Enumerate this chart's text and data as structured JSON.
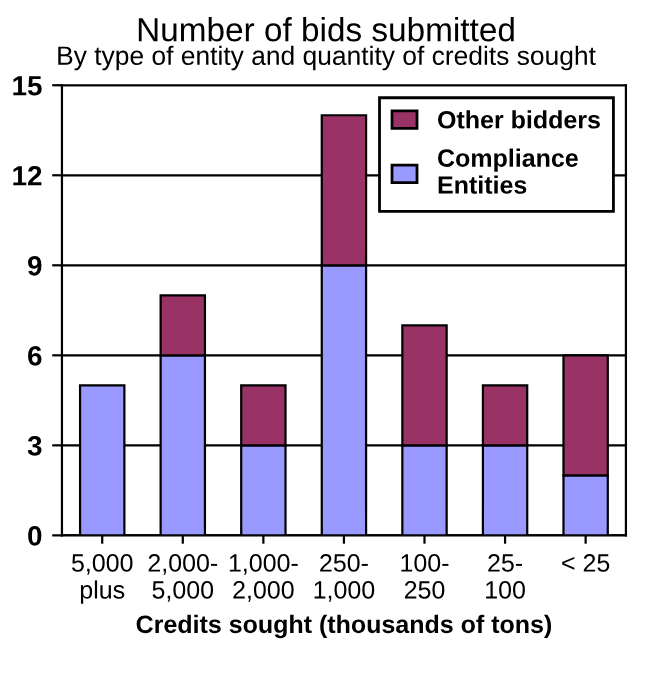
{
  "chart_data": {
    "type": "bar",
    "title": "Number of bids submitted",
    "subtitle": "By type of entity and quantity of credits sought",
    "xlabel": "Credits sought (thousands of tons)",
    "categories": [
      "5,000\nplus",
      "2,000-\n5,000",
      "1,000-\n2,000",
      "250-\n1,000",
      "100-\n250",
      "25-\n100",
      "< 25"
    ],
    "series": [
      {
        "name": "Compliance\nEntities",
        "color": "#9999ff",
        "values": [
          5,
          6,
          3,
          9,
          3,
          3,
          2
        ]
      },
      {
        "name": "Other bidders",
        "color": "#993366",
        "values": [
          null,
          2,
          2,
          5,
          4,
          2,
          4
        ]
      }
    ],
    "stacked": true,
    "ylim": [
      0,
      15
    ],
    "yticks": [
      0,
      3,
      6,
      9,
      12,
      15
    ],
    "grid": "y",
    "legend": "top right"
  }
}
